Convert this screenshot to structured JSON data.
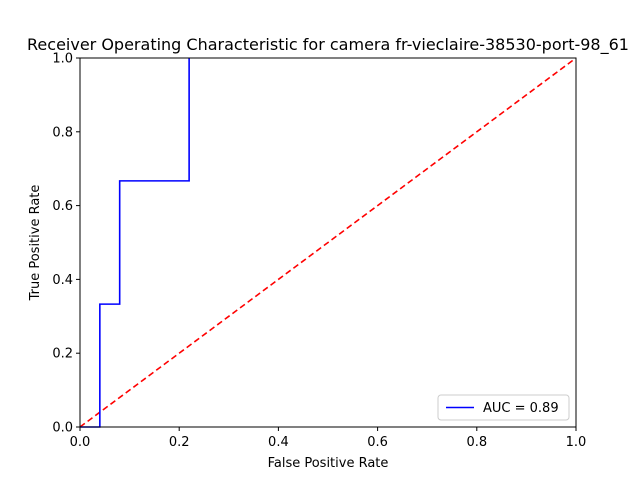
{
  "chart_data": {
    "type": "line",
    "title": "Receiver Operating Characteristic for camera fr-vieclaire-38530-port-98_61",
    "xlabel": "False Positive Rate",
    "ylabel": "True Positive Rate",
    "xlim": [
      0.0,
      1.0
    ],
    "ylim": [
      0.0,
      1.0
    ],
    "xticks": [
      "0.0",
      "0.2",
      "0.4",
      "0.6",
      "0.8",
      "1.0"
    ],
    "yticks": [
      "0.0",
      "0.2",
      "0.4",
      "0.6",
      "0.8",
      "1.0"
    ],
    "grid": false,
    "legend_position": "lower right",
    "series": [
      {
        "name": "AUC = 0.89",
        "color": "#0000ff",
        "style": "solid",
        "x": [
          0.0,
          0.04,
          0.04,
          0.08,
          0.08,
          0.22,
          0.22
        ],
        "y": [
          0.0,
          0.0,
          0.333,
          0.333,
          0.667,
          0.667,
          1.0
        ]
      },
      {
        "color": "#ff0000",
        "style": "dashed",
        "x": [
          0.0,
          1.0
        ],
        "y": [
          0.0,
          1.0
        ]
      }
    ]
  }
}
